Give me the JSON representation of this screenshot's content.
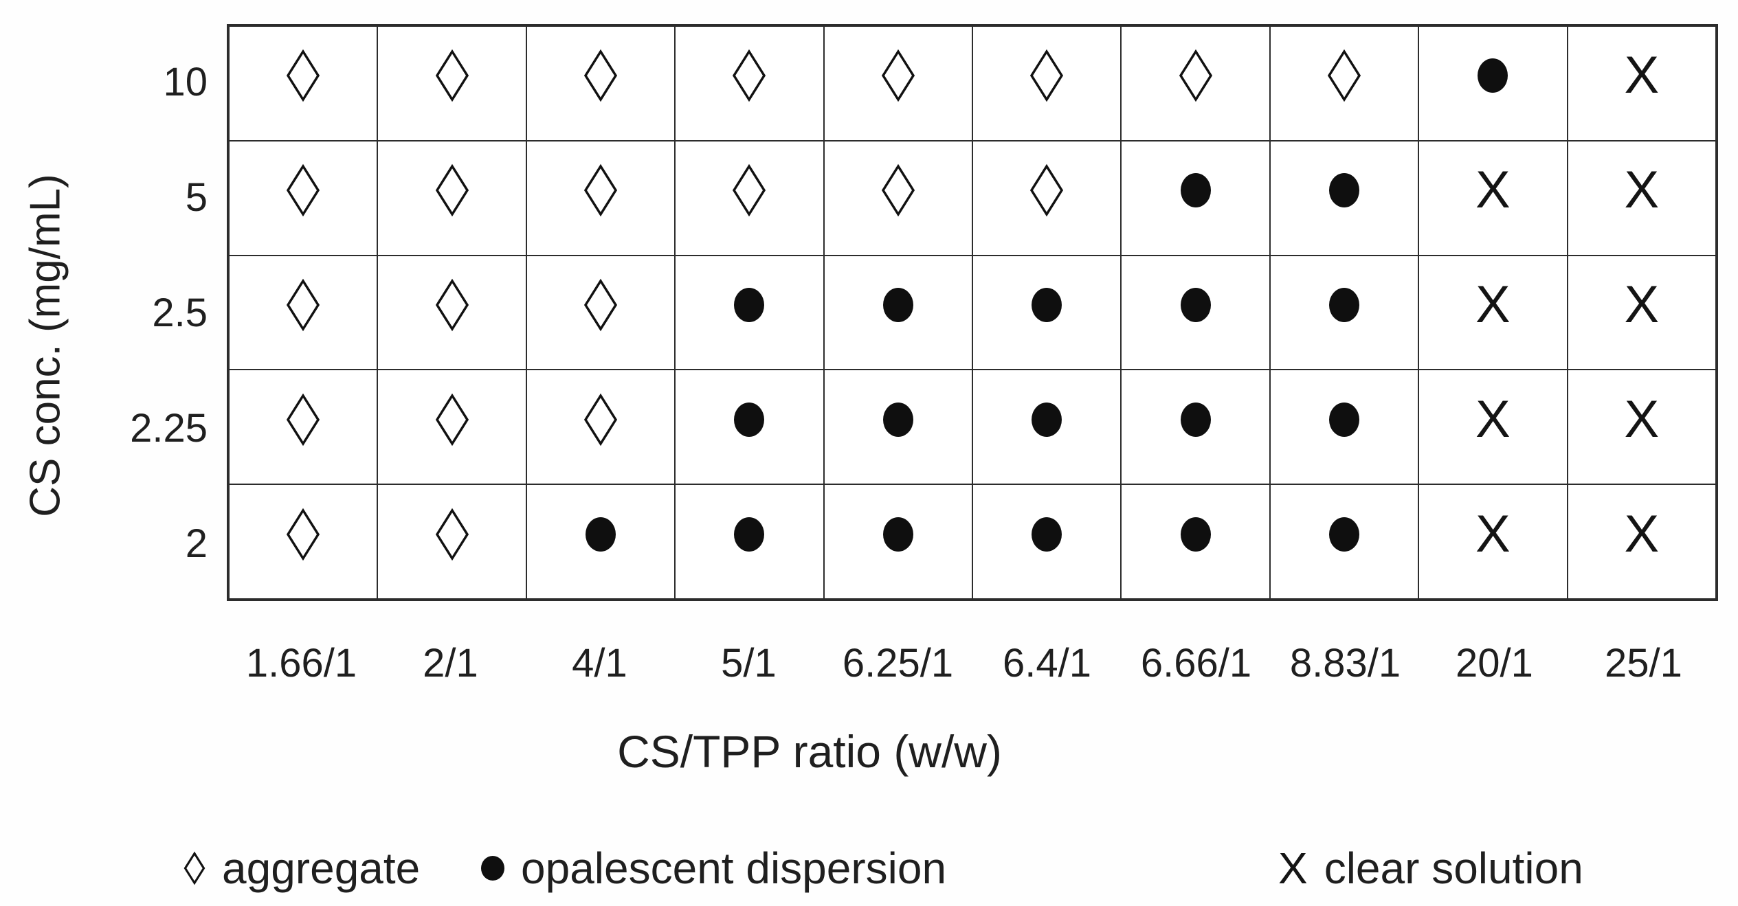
{
  "chart_data": {
    "type": "table",
    "title": "",
    "xlabel": "CS/TPP ratio (w/w)",
    "ylabel": "CS conc. (mg/mL)",
    "x_categories": [
      "1.66/1",
      "2/1",
      "4/1",
      "5/1",
      "6.25/1",
      "6.4/1",
      "6.66/1",
      "8.83/1",
      "20/1",
      "25/1"
    ],
    "y_categories": [
      "10",
      "5",
      "2.5",
      "2.25",
      "2"
    ],
    "symbol_meanings": {
      "diamond": "aggregate",
      "dot": "opalescent dispersion",
      "x": "clear solution"
    },
    "symbol_glyphs": {
      "diamond": "◊",
      "dot": "●",
      "x": "X"
    },
    "cells": [
      [
        "diamond",
        "diamond",
        "diamond",
        "diamond",
        "diamond",
        "diamond",
        "diamond",
        "diamond",
        "dot",
        "x"
      ],
      [
        "diamond",
        "diamond",
        "diamond",
        "diamond",
        "diamond",
        "diamond",
        "dot",
        "dot",
        "x",
        "x"
      ],
      [
        "diamond",
        "diamond",
        "diamond",
        "dot",
        "dot",
        "dot",
        "dot",
        "dot",
        "x",
        "x"
      ],
      [
        "diamond",
        "diamond",
        "diamond",
        "dot",
        "dot",
        "dot",
        "dot",
        "dot",
        "x",
        "x"
      ],
      [
        "diamond",
        "diamond",
        "dot",
        "dot",
        "dot",
        "dot",
        "dot",
        "dot",
        "x",
        "x"
      ]
    ],
    "grid": true,
    "legend_position": "bottom"
  },
  "legend": {
    "items": [
      {
        "symbol": "diamond",
        "glyph": "◊",
        "label": "aggregate"
      },
      {
        "symbol": "dot",
        "glyph": "●",
        "label": "opalescent dispersion"
      },
      {
        "symbol": "x",
        "glyph": "X",
        "label": "clear solution"
      }
    ]
  },
  "colors": {
    "background": "#ffffff",
    "grid_line": "#2c2c2c",
    "symbol": "#111111",
    "text": "#1f1f1f"
  }
}
